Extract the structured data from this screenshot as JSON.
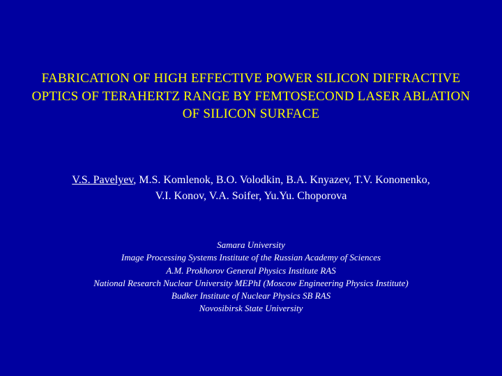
{
  "background_color": "#0000a0",
  "title_color": "#ffff00",
  "text_color": "#ffffff",
  "title": {
    "line1": "FABRICATION OF HIGH EFFECTIVE POWER SILICON DIFFRACTIVE",
    "line2": "OPTICS OF TERAHERTZ RANGE BY FEMTOSECOND LASER ABLATION",
    "line3": "OF SILICON SURFACE",
    "fontsize": 19
  },
  "authors": {
    "lead": "V.S. Pavelyev",
    "rest_line1": ", M.S. Komlenok, B.O. Volodkin, B.A. Knyazev, T.V. Kononenko,",
    "line2": "V.I. Konov, V.A. Soifer, Yu.Yu. Choporova",
    "fontsize": 16
  },
  "affiliations": {
    "lines": [
      "Samara University",
      "Image Processing Systems Institute of the Russian Academy of Sciences",
      "A.M. Prokhorov General Physics Institute RAS",
      "National Research Nuclear University MEPhI (Moscow Engineering Physics Institute)",
      "Budker Institute of Nuclear Physics SB RAS",
      "Novosibirsk State University"
    ],
    "fontsize": 13,
    "font_style": "italic"
  }
}
